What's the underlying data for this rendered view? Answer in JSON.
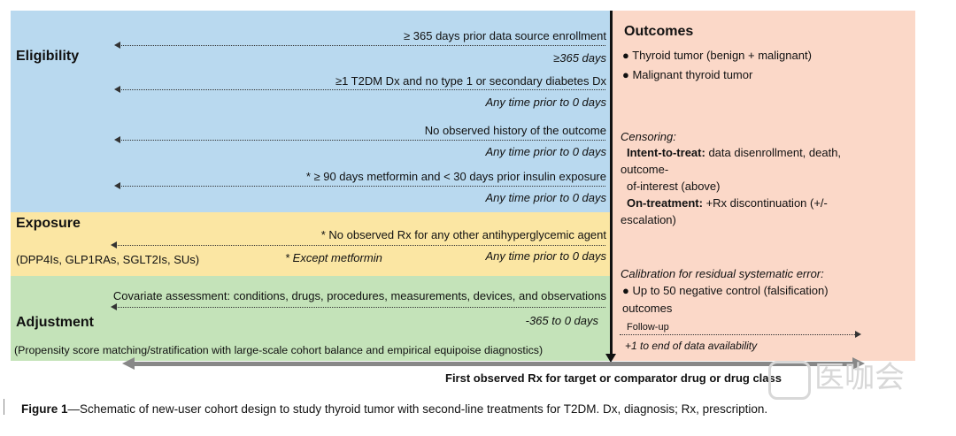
{
  "eligibility": {
    "title": "Eligibility",
    "rows": [
      {
        "criterion": "≥ 365 days prior data source enrollment",
        "window": "≥365 days"
      },
      {
        "criterion": "≥1 T2DM Dx and no type 1 or secondary diabetes Dx",
        "window": "Any time prior to 0 days"
      },
      {
        "criterion": "No observed history of the outcome",
        "window": "Any time prior to 0 days"
      },
      {
        "criterion": "* ≥ 90 days metformin and < 30 days prior insulin exposure",
        "window": "Any time prior to 0 days"
      }
    ]
  },
  "exposure": {
    "title": "Exposure",
    "criterion": "* No observed Rx for any other antihyperglycemic agent",
    "drugs": "(DPP4Is, GLP1RAs, SGLT2Is, SUs)",
    "note": "* Except metformin",
    "window": "Any time prior to 0 days"
  },
  "adjustment": {
    "title": "Adjustment",
    "covariates": "Covariate assessment: conditions, drugs, procedures, measurements, devices, and observations",
    "window": "-365 to 0 days",
    "method": "(Propensity score matching/stratification with large-scale cohort balance and empirical equipoise diagnostics)"
  },
  "outcomes": {
    "title": "Outcomes",
    "items": [
      "Thyroid tumor (benign + malignant)",
      "Malignant thyroid tumor"
    ],
    "censoring_label": "Censoring:",
    "itt_label": "Intent-to-treat:",
    "itt_text": "data disenrollment, death,",
    "itt_line2": "outcome-",
    "itt_line3": "of-interest (above)",
    "ot_label": "On-treatment:",
    "ot_text": "+Rx discontinuation (+/-",
    "ot_line2": "escalation)",
    "calibration_label": "Calibration for residual systematic error:",
    "calibration_item": "Up to 50 negative control (falsification)",
    "calibration_line2": "outcomes",
    "followup_label": "Follow-up",
    "followup_window": "+1 to end of data availability"
  },
  "index_label": "First observed Rx for target or comparator drug or drug class",
  "caption": {
    "prefix": "Figure 1",
    "text": "—Schematic of new-user cohort design to study thyroid tumor with second-line treatments for T2DM. Dx, diagnosis; Rx, prescription."
  },
  "watermark": "医咖会",
  "colors": {
    "eligibility": "#b9d9ef",
    "exposure": "#fbe6a3",
    "adjustment": "#c4e3b9",
    "outcomes": "#fbd8c8",
    "timeline": "#111111",
    "time_axis": "#888888"
  }
}
